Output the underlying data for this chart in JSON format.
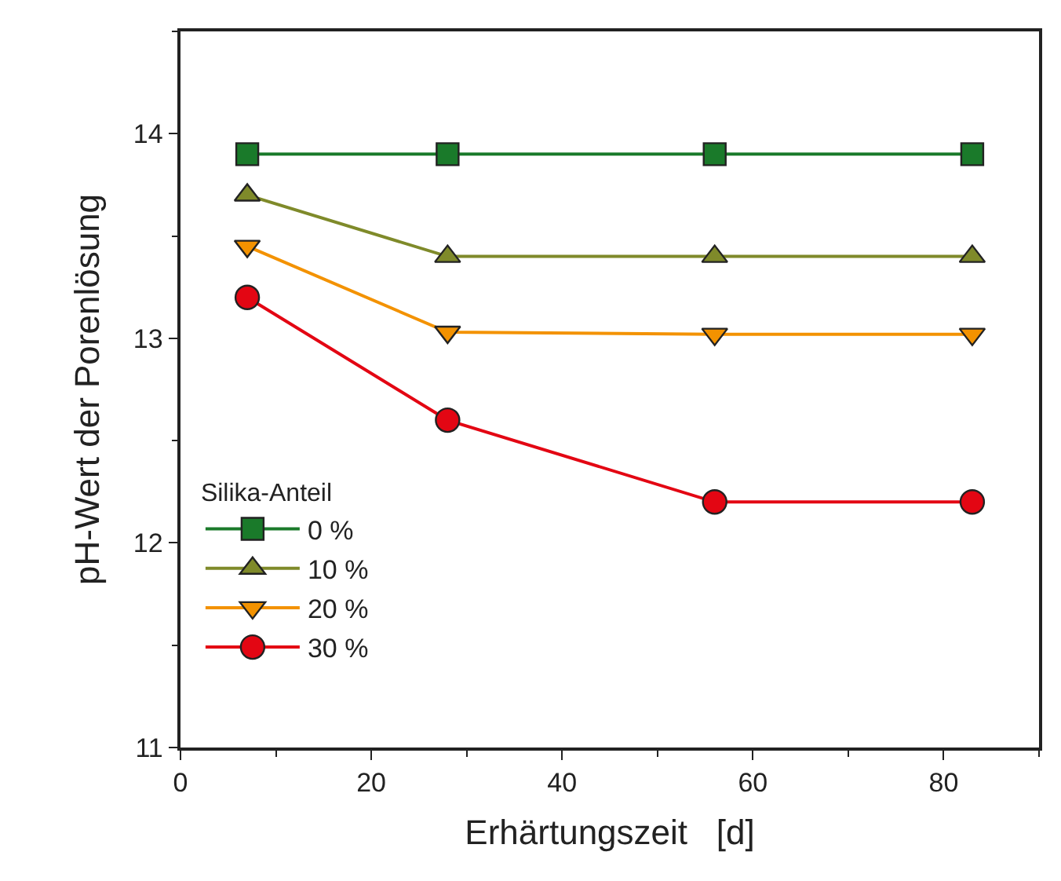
{
  "chart_data": {
    "type": "line",
    "xlabel": "Erhärtungszeit   [d]",
    "ylabel": "pH-Wert der Porenlösung",
    "legend_title": "Silika-Anteil",
    "legend": "bottom left",
    "x": [
      7,
      28,
      56,
      83
    ],
    "xlim": [
      0,
      90
    ],
    "xticks": [
      0,
      20,
      40,
      60,
      80
    ],
    "ylim": [
      11,
      14.5
    ],
    "yticks": [
      11,
      12,
      13,
      14
    ],
    "series": [
      {
        "name": "0 %",
        "color": "#1a7a2a",
        "marker": "square",
        "values": [
          13.9,
          13.9,
          13.9,
          13.9
        ]
      },
      {
        "name": "10 %",
        "color": "#7f8a2a",
        "marker": "triangle",
        "values": [
          13.7,
          13.4,
          13.4,
          13.4
        ]
      },
      {
        "name": "20 %",
        "color": "#f39200",
        "marker": "triangle-down",
        "values": [
          13.45,
          13.03,
          13.02,
          13.02
        ]
      },
      {
        "name": "30 %",
        "color": "#e30613",
        "marker": "circle",
        "values": [
          13.2,
          12.6,
          12.2,
          12.2
        ]
      }
    ]
  }
}
